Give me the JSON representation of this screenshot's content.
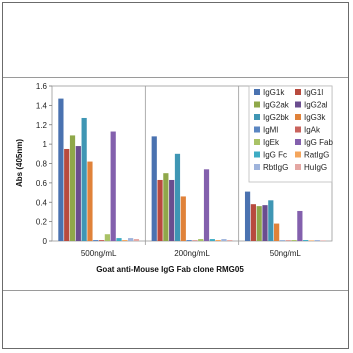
{
  "chart_data": {
    "type": "bar",
    "xlabel": "Goat anti-Mouse IgG Fab clone RMG05",
    "ylabel": "Abs (405nm)",
    "ylim": [
      0,
      1.6
    ],
    "yticks": [
      0,
      0.2,
      0.4,
      0.6,
      0.8,
      1,
      1.2,
      1.4,
      1.6
    ],
    "ytick_labels": [
      "0",
      "0.2",
      "0.4",
      "0.6",
      "0.8",
      "1",
      "1.2",
      "1.4",
      "1.6"
    ],
    "categories": [
      "500ng/mL",
      "200ng/mL",
      "50ng/mL"
    ],
    "legend_position": "top-right",
    "series": [
      {
        "name": "IgG1k",
        "color": "#4a72b0",
        "values": [
          1.47,
          1.08,
          0.51
        ]
      },
      {
        "name": "IgG1l",
        "color": "#b84a3e",
        "values": [
          0.95,
          0.63,
          0.38
        ]
      },
      {
        "name": "IgG2ak",
        "color": "#8fa84a",
        "values": [
          1.09,
          0.7,
          0.36
        ]
      },
      {
        "name": "IgG2al",
        "color": "#6a4d8f",
        "values": [
          0.98,
          0.63,
          0.37
        ]
      },
      {
        "name": "IgG2bk",
        "color": "#3f96b4",
        "values": [
          1.27,
          0.9,
          0.42
        ]
      },
      {
        "name": "IgG3k",
        "color": "#e0823a",
        "values": [
          0.82,
          0.46,
          0.18
        ]
      },
      {
        "name": "IgMl",
        "color": "#5b86c2",
        "values": [
          0.01,
          0.01,
          0.005
        ]
      },
      {
        "name": "IgAk",
        "color": "#c9635d",
        "values": [
          0.01,
          0.005,
          0.005
        ]
      },
      {
        "name": "IgEk",
        "color": "#a9c266",
        "values": [
          0.07,
          0.02,
          0.01
        ]
      },
      {
        "name": "IgG Fab",
        "color": "#8360ad",
        "values": [
          1.13,
          0.74,
          0.31
        ]
      },
      {
        "name": "IgG Fc",
        "color": "#3eacc4",
        "values": [
          0.03,
          0.02,
          0.01
        ]
      },
      {
        "name": "RatIgG",
        "color": "#f4a55c",
        "values": [
          0.01,
          0.01,
          0.005
        ]
      },
      {
        "name": "RbtIgG",
        "color": "#9fb4dc",
        "values": [
          0.03,
          0.02,
          0.01
        ]
      },
      {
        "name": "HuIgG",
        "color": "#e4a7a3",
        "values": [
          0.02,
          0.01,
          0.005
        ]
      }
    ]
  }
}
